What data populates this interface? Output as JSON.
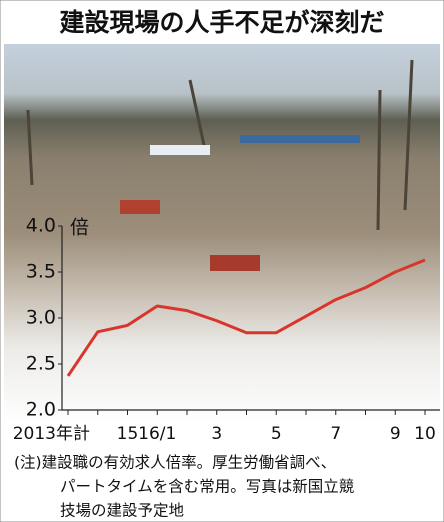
{
  "chart_data": {
    "type": "line",
    "title": "建設現場の人手不足が深刻だ",
    "y_label": "倍",
    "categories": [
      "2013年計",
      null,
      "15",
      "16/1",
      null,
      "3",
      null,
      "5",
      null,
      "7",
      null,
      "9",
      "10"
    ],
    "series": [
      {
        "name": "有効求人倍率",
        "color": "#d8362c",
        "values": [
          2.37,
          2.85,
          2.92,
          3.13,
          3.08,
          2.97,
          2.84,
          2.84,
          3.02,
          3.2,
          3.33,
          3.5,
          3.63
        ]
      }
    ],
    "ylim": [
      2.0,
      4.0
    ],
    "yticks": [
      {
        "value": 2.0,
        "label": "2.0"
      },
      {
        "value": 2.5,
        "label": "2.5"
      },
      {
        "value": 3.0,
        "label": "3.0"
      },
      {
        "value": 3.5,
        "label": "3.5"
      },
      {
        "value": 4.0,
        "label": "4.0"
      }
    ],
    "note": [
      "(注)建設職の有効求人倍率。厚生労働省調べ、",
      "パートタイムを含む常用。写真は新国立競",
      "技場の建設予定地"
    ]
  }
}
